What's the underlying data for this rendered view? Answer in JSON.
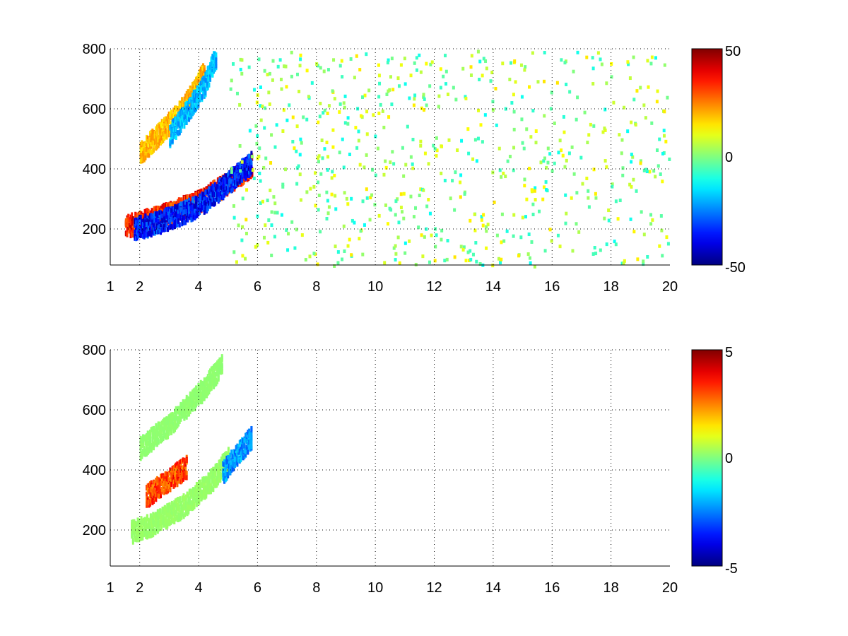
{
  "chart_data": [
    {
      "type": "heatmap",
      "title": "",
      "xlabel": "",
      "ylabel": "",
      "xlim": [
        1,
        20
      ],
      "ylim": [
        80,
        800
      ],
      "x_ticks": [
        "1",
        "2",
        "4",
        "6",
        "8",
        "10",
        "12",
        "14",
        "16",
        "18",
        "20"
      ],
      "y_ticks": [
        "200",
        "400",
        "600",
        "800"
      ],
      "grid": true,
      "colorbar": {
        "min": -50,
        "max": 50,
        "ticks": [
          "50",
          "0",
          "-50"
        ],
        "colormap": "jet"
      },
      "features": [
        {
          "description": "positive ridge",
          "x": [
            1.5,
            2.2,
            3.0,
            4.0,
            5.0,
            5.8
          ],
          "y": [
            215,
            235,
            260,
            300,
            360,
            420
          ],
          "value": 45
        },
        {
          "description": "negative ridge",
          "x": [
            1.8,
            2.5,
            3.2,
            4.0,
            4.6,
            5.2,
            5.8
          ],
          "y": [
            210,
            225,
            250,
            285,
            330,
            380,
            430
          ],
          "value": -45
        },
        {
          "description": "upper positive band",
          "x": [
            2.0,
            2.6,
            3.2,
            3.8,
            4.2
          ],
          "y": [
            460,
            520,
            580,
            660,
            740
          ],
          "value": 25
        },
        {
          "description": "upper negative band",
          "x": [
            3.0,
            3.6,
            4.2,
            4.6
          ],
          "y": [
            520,
            600,
            690,
            790
          ],
          "value": -25
        }
      ],
      "background_noise": {
        "x_range": [
          5,
          20
        ],
        "value_range": [
          -12,
          15
        ]
      }
    },
    {
      "type": "heatmap",
      "title": "",
      "xlabel": "",
      "ylabel": "",
      "xlim": [
        1,
        20
      ],
      "ylim": [
        80,
        800
      ],
      "x_ticks": [
        "1",
        "2",
        "4",
        "6",
        "8",
        "10",
        "12",
        "14",
        "16",
        "18",
        "20"
      ],
      "y_ticks": [
        "200",
        "400",
        "600",
        "800"
      ],
      "grid": true,
      "colorbar": {
        "min": -5,
        "max": 5,
        "ticks": [
          "5",
          "0",
          "-5"
        ],
        "colormap": "jet"
      },
      "features": [
        {
          "description": "lower band",
          "x": [
            1.7,
            2.5,
            3.5,
            4.5,
            5.0
          ],
          "y": [
            200,
            230,
            290,
            380,
            450
          ],
          "value": 0.3
        },
        {
          "description": "upper band",
          "x": [
            2.0,
            3.0,
            4.0,
            4.8
          ],
          "y": [
            480,
            560,
            660,
            760
          ],
          "value": 0.2
        },
        {
          "description": "mixed cluster",
          "x": [
            2.2,
            3.6
          ],
          "y": [
            320,
            420
          ],
          "value": 4
        },
        {
          "description": "negative patch",
          "x": [
            4.8,
            5.8
          ],
          "y": [
            400,
            520
          ],
          "value": -3
        }
      ]
    }
  ]
}
